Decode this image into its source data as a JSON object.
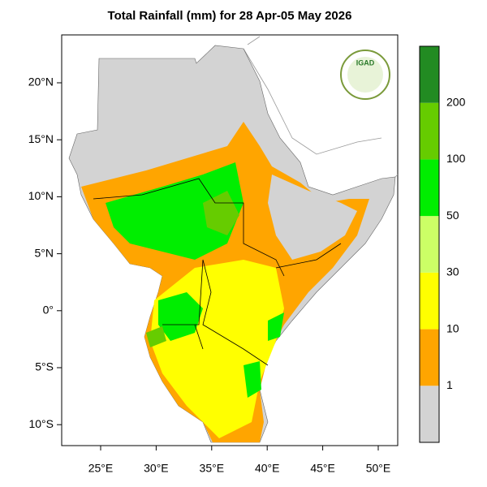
{
  "title": "Total Rainfall (mm) for 28 Apr-05 May 2026",
  "logo": "IGAD",
  "map": {
    "lat_labels": [
      "20°N",
      "15°N",
      "10°N",
      "5°N",
      "0°",
      "5°S",
      "10°S"
    ],
    "lon_labels": [
      "25°E",
      "30°E",
      "35°E",
      "40°E",
      "45°E",
      "50°E"
    ]
  },
  "legend": {
    "colors": [
      "#d3d3d3",
      "#ffa500",
      "#ffff00",
      "#ccff66",
      "#00ee00",
      "#66cc00",
      "#228b22"
    ],
    "labels": [
      "1",
      "10",
      "30",
      "50",
      "100",
      "200"
    ]
  }
}
